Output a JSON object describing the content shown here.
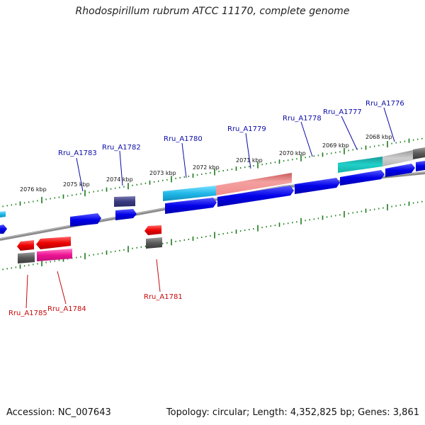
{
  "title": "Rhodospirillum rubrum ATCC 11170, complete genome",
  "footer": {
    "accession": "Accession: NC_007643",
    "summary": "Topology: circular; Length: 4,352,825 bp; Genes: 3,861"
  },
  "colors": {
    "tick_major": "#1a7a1a",
    "tick_minor": "#1a7a1a",
    "backbone": "#777777",
    "label_top": "#0a0aa8",
    "label_bottom": "#c80a0a"
  },
  "kbp_labels": [
    "2076 kbp",
    "2075 kbp",
    "2074 kbp",
    "2073 kbp",
    "2072 kbp",
    "2071 kbp",
    "2070 kbp",
    "2069 kbp",
    "2068 kbp"
  ],
  "gene_labels_top": [
    "Rru_A1783",
    "Rru_A1782",
    "Rru_A1780",
    "Rru_A1779",
    "Rru_A1778",
    "Rru_A1777",
    "Rru_A1776"
  ],
  "gene_labels_bottom": [
    "Rru_A1785",
    "Rru_A1784",
    "Rru_A1781"
  ]
}
